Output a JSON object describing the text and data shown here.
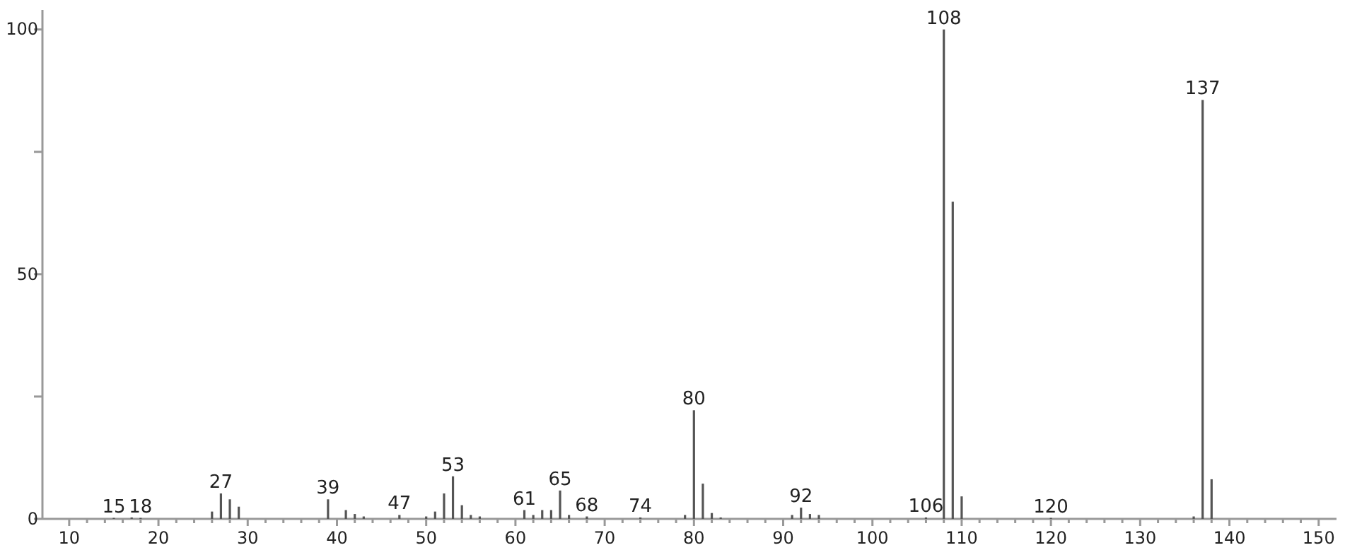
{
  "chart_data": {
    "type": "bar",
    "x": [
      15,
      17,
      18,
      26,
      27,
      28,
      29,
      39,
      41,
      42,
      43,
      47,
      50,
      51,
      52,
      53,
      54,
      55,
      56,
      61,
      62,
      63,
      64,
      65,
      66,
      68,
      74,
      79,
      80,
      81,
      82,
      83,
      91,
      92,
      93,
      94,
      106,
      108,
      109,
      110,
      120,
      136,
      137,
      138
    ],
    "values": [
      0.2,
      0.3,
      0.2,
      1.5,
      5.2,
      4,
      2.5,
      4,
      1.8,
      1,
      0.5,
      0.8,
      0.5,
      1.5,
      5.2,
      8.7,
      2.8,
      0.8,
      0.5,
      1.8,
      0.8,
      1.8,
      1.8,
      5.8,
      0.8,
      0.5,
      0.3,
      0.8,
      22.2,
      7.2,
      1.2,
      0.3,
      0.8,
      2.3,
      1,
      0.8,
      0.3,
      100,
      64.8,
      4.6,
      0.2,
      0.5,
      85.6,
      8.1
    ],
    "color": "#555555",
    "xlim": [
      7,
      152
    ],
    "xticks": [
      10,
      {
        "value": 12,
        "label": null
      },
      {
        "value": 14,
        "label": null
      },
      {
        "value": 16,
        "label": null
      },
      {
        "value": 18,
        "label": null
      },
      20,
      {
        "value": 22,
        "label": null
      },
      {
        "value": 24,
        "label": null
      },
      {
        "value": 26,
        "label": null
      },
      {
        "value": 28,
        "label": null
      },
      30,
      {
        "value": 32,
        "label": null
      },
      {
        "value": 34,
        "label": null
      },
      {
        "value": 36,
        "label": null
      },
      {
        "value": 38,
        "label": null
      },
      40,
      {
        "value": 42,
        "label": null
      },
      {
        "value": 44,
        "label": null
      },
      {
        "value": 46,
        "label": null
      },
      {
        "value": 48,
        "label": null
      },
      50,
      {
        "value": 52,
        "label": null
      },
      {
        "value": 54,
        "label": null
      },
      {
        "value": 56,
        "label": null
      },
      {
        "value": 58,
        "label": null
      },
      60,
      {
        "value": 62,
        "label": null
      },
      {
        "value": 64,
        "label": null
      },
      {
        "value": 66,
        "label": null
      },
      {
        "value": 68,
        "label": null
      },
      70,
      {
        "value": 72,
        "label": null
      },
      {
        "value": 74,
        "label": null
      },
      {
        "value": 76,
        "label": null
      },
      {
        "value": 78,
        "label": null
      },
      80,
      {
        "value": 82,
        "label": null
      },
      {
        "value": 84,
        "label": null
      },
      {
        "value": 86,
        "label": null
      },
      {
        "value": 88,
        "label": null
      },
      90,
      {
        "value": 92,
        "label": null
      },
      {
        "value": 94,
        "label": null
      },
      {
        "value": 96,
        "label": null
      },
      {
        "value": 98,
        "label": null
      },
      100,
      {
        "value": 102,
        "label": null
      },
      {
        "value": 104,
        "label": null
      },
      {
        "value": 106,
        "label": null
      },
      {
        "value": 108,
        "label": null
      },
      110,
      {
        "value": 112,
        "label": null
      },
      {
        "value": 114,
        "label": null
      },
      {
        "value": 116,
        "label": null
      },
      {
        "value": 118,
        "label": null
      },
      120,
      {
        "value": 122,
        "label": null
      },
      {
        "value": 124,
        "label": null
      },
      {
        "value": 126,
        "label": null
      },
      {
        "value": 128,
        "label": null
      },
      130,
      {
        "value": 132,
        "label": null
      },
      {
        "value": 134,
        "label": null
      },
      {
        "value": 136,
        "label": null
      },
      {
        "value": 138,
        "label": null
      },
      140,
      {
        "value": 142,
        "label": null
      },
      {
        "value": 144,
        "label": null
      },
      {
        "value": 146,
        "label": null
      },
      {
        "value": 148,
        "label": null
      },
      150
    ],
    "ylim": [
      0,
      104
    ],
    "yticks": [
      0,
      {
        "value": 25,
        "label": null
      },
      50,
      {
        "value": 75,
        "label": null
      },
      100
    ],
    "annotations": [
      {
        "text": "15",
        "x": 15,
        "y": 0.2
      },
      {
        "text": "18",
        "x": 18,
        "y": 0.2
      },
      {
        "text": "27",
        "x": 27,
        "y": 5.2
      },
      {
        "text": "39",
        "x": 39,
        "y": 4
      },
      {
        "text": "47",
        "x": 47,
        "y": 0.8
      },
      {
        "text": "53",
        "x": 53,
        "y": 8.7
      },
      {
        "text": "61",
        "x": 61,
        "y": 1.8
      },
      {
        "text": "65",
        "x": 65,
        "y": 5.8
      },
      {
        "text": "68",
        "x": 68,
        "y": 0.5
      },
      {
        "text": "74",
        "x": 74,
        "y": 0.3
      },
      {
        "text": "80",
        "x": 80,
        "y": 22.2
      },
      {
        "text": "92",
        "x": 92,
        "y": 2.3
      },
      {
        "text": "106",
        "x": 106,
        "y": 0.3
      },
      {
        "text": "108",
        "x": 108,
        "y": 100
      },
      {
        "text": "120",
        "x": 120,
        "y": 0.2
      },
      {
        "text": "137",
        "x": 137,
        "y": 85.6
      }
    ]
  }
}
